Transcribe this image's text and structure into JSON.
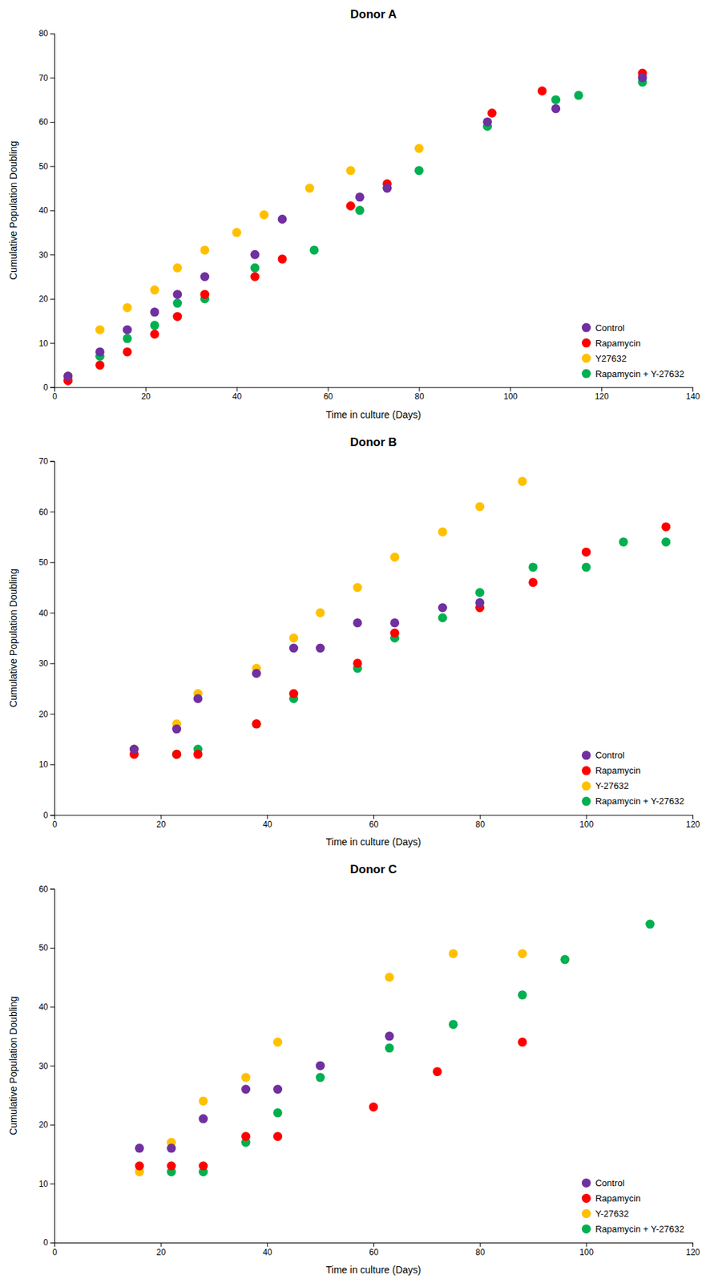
{
  "chart_data": [
    {
      "type": "scatter",
      "title": "Donor A",
      "x_label": "Time in culture (Days)",
      "y_label": "Cumulative Population Doubling",
      "xlim": [
        0,
        140
      ],
      "ylim": [
        0,
        80
      ],
      "xticks": [
        0,
        20,
        40,
        60,
        80,
        100,
        120,
        140
      ],
      "yticks": [
        0,
        10,
        20,
        30,
        40,
        50,
        60,
        70,
        80
      ],
      "grid": false,
      "legend": "lower right",
      "series": [
        {
          "name": "Control",
          "color": "#7030A0",
          "x": [
            3,
            10,
            16,
            22,
            27,
            33,
            44,
            50,
            67,
            73,
            95,
            110,
            129
          ],
          "values": [
            2.5,
            8,
            13,
            17,
            21,
            25,
            30,
            38,
            43,
            45,
            60,
            63,
            70
          ]
        },
        {
          "name": "Rapamycin",
          "color": "#FF0000",
          "x": [
            3,
            10,
            16,
            22,
            27,
            33,
            44,
            50,
            65,
            73,
            96,
            107,
            129
          ],
          "values": [
            1.5,
            5,
            8,
            12,
            16,
            21,
            25,
            29,
            41,
            46,
            62,
            67,
            71
          ]
        },
        {
          "name": "Y27632",
          "color": "#FFC000",
          "x": [
            3,
            10,
            16,
            22,
            27,
            33,
            40,
            46,
            56,
            65,
            80
          ],
          "values": [
            2.5,
            13,
            18,
            22,
            27,
            31,
            35,
            39,
            45,
            49,
            54
          ]
        },
        {
          "name": "Rapamycin + Y-27632",
          "color": "#00B050",
          "x": [
            3,
            10,
            16,
            22,
            27,
            33,
            44,
            57,
            67,
            80,
            95,
            110,
            115,
            129
          ],
          "values": [
            2.5,
            7,
            11,
            14,
            19,
            20,
            27,
            31,
            40,
            49,
            59,
            65,
            66,
            69
          ]
        }
      ]
    },
    {
      "type": "scatter",
      "title": "Donor B",
      "x_label": "Time in culture (Days)",
      "y_label": "Cumulative Population Doubling",
      "xlim": [
        0,
        120
      ],
      "ylim": [
        0,
        70
      ],
      "xticks": [
        0,
        20,
        40,
        60,
        80,
        100,
        120
      ],
      "yticks": [
        0,
        10,
        20,
        30,
        40,
        50,
        60,
        70
      ],
      "grid": false,
      "legend": "lower right",
      "series": [
        {
          "name": "Control",
          "color": "#7030A0",
          "x": [
            15,
            23,
            27,
            38,
            45,
            50,
            57,
            64,
            73,
            80
          ],
          "values": [
            13,
            17,
            23,
            28,
            33,
            33,
            38,
            38,
            41,
            42
          ]
        },
        {
          "name": "Rapamycin",
          "color": "#FF0000",
          "x": [
            15,
            23,
            27,
            38,
            45,
            57,
            64,
            80,
            90,
            100,
            115
          ],
          "values": [
            12,
            12,
            12,
            18,
            24,
            30,
            36,
            41,
            46,
            52,
            57
          ]
        },
        {
          "name": "Y-27632",
          "color": "#FFC000",
          "x": [
            15,
            23,
            27,
            38,
            45,
            50,
            57,
            64,
            73,
            80,
            88
          ],
          "values": [
            13,
            18,
            24,
            29,
            35,
            40,
            45,
            51,
            56,
            61,
            66
          ]
        },
        {
          "name": "Rapamycin + Y-27632",
          "color": "#00B050",
          "x": [
            23,
            27,
            38,
            45,
            57,
            64,
            73,
            80,
            90,
            100,
            107,
            115
          ],
          "values": [
            12,
            13,
            18,
            23,
            29,
            35,
            39,
            44,
            49,
            49,
            54,
            54
          ]
        }
      ]
    },
    {
      "type": "scatter",
      "title": "Donor C",
      "x_label": "Time in culture (Days)",
      "y_label": "Cumulative Population Doubling",
      "xlim": [
        0,
        120
      ],
      "ylim": [
        0,
        60
      ],
      "xticks": [
        0,
        20,
        40,
        60,
        80,
        100,
        120
      ],
      "yticks": [
        0,
        10,
        20,
        30,
        40,
        50,
        60
      ],
      "grid": false,
      "legend": "lower right",
      "series": [
        {
          "name": "Control",
          "color": "#7030A0",
          "x": [
            16,
            22,
            28,
            36,
            42,
            50,
            63
          ],
          "values": [
            16,
            16,
            21,
            26,
            26,
            30,
            35
          ]
        },
        {
          "name": "Rapamycin",
          "color": "#FF0000",
          "x": [
            16,
            22,
            28,
            36,
            42,
            60,
            72,
            88
          ],
          "values": [
            13,
            13,
            13,
            18,
            18,
            23,
            29,
            34
          ]
        },
        {
          "name": "Y-27632",
          "color": "#FFC000",
          "x": [
            16,
            22,
            28,
            36,
            42,
            63,
            75,
            88
          ],
          "values": [
            12,
            17,
            24,
            28,
            34,
            45,
            49,
            49
          ]
        },
        {
          "name": "Rapamycin + Y-27632",
          "color": "#00B050",
          "x": [
            22,
            28,
            36,
            42,
            50,
            63,
            75,
            88,
            96,
            112
          ],
          "values": [
            12,
            12,
            17,
            22,
            28,
            33,
            37,
            42,
            48,
            54
          ]
        }
      ]
    }
  ]
}
